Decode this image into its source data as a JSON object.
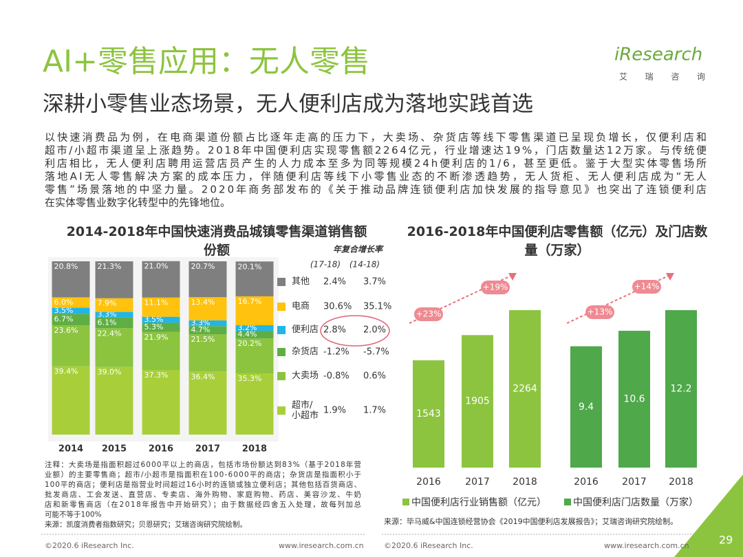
{
  "header": {
    "title": "AI+零售应用：无人零售",
    "subtitle": "深耕小零售业态场景，无人便利店成为落地实践首选",
    "logo": "iResearch",
    "logo_cn": "艾 瑞 咨 询"
  },
  "paragraph": [
    "以快速消费品为例，在电商渠道份额占比逐年走高的压力下，大卖场、杂货店等线下零售渠道已呈现负增长，仅便利店和",
    "超市/小超市渠道呈上涨趋势。2018年中国便利店实现零售额2264亿元，行业增速达19%，门店数量达12万家。与传统便",
    "利店相比，无人便利店聘用运营店员产生的人力成本至多为同等规模24h便利店的1/6，甚至更低。鉴于大型实体零售场所",
    "落地AI无人零售解决方案的成本压力，伴随便利店等线下小零售业态的不断渗透趋势，无人货柜、无人便利店成为“无人",
    "零售”场景落地的中坚力量。2020年商务部发布的《关于推动品牌连锁便利店加快发展的指导意见》也突出了连锁便利店",
    "在实体零售业数字化转型中的先锋地位。"
  ],
  "chart_data": [
    {
      "type": "stacked_bar",
      "title": "2014-2018年中国快速消费品城镇零售渠道销售额份额",
      "categories": [
        "2014",
        "2015",
        "2016",
        "2017",
        "2018"
      ],
      "legend_header": "年复合增长率",
      "cagr_headers": [
        "(17-18)",
        "(14-18)"
      ],
      "series": [
        {
          "name": "超市/小超市",
          "color": "#a8cf3a",
          "values": [
            39.4,
            39.0,
            37.3,
            36.4,
            35.3
          ],
          "value_labels": [
            "39.4%",
            "39.0%",
            "37.3%",
            "36.4%",
            "35.3%"
          ],
          "cagr": [
            1.9,
            1.7
          ],
          "cagr_labels": [
            "1.9%",
            "1.7%"
          ]
        },
        {
          "name": "大卖场",
          "color": "#8cc43f",
          "values": [
            23.6,
            22.4,
            21.9,
            21.5,
            20.2
          ],
          "value_labels": [
            "23.6%",
            "22.4%",
            "21.9%",
            "21.5%",
            "20.2%"
          ],
          "cagr": [
            -0.8,
            0.6
          ],
          "cagr_labels": [
            "-0.8%",
            "0.6%"
          ]
        },
        {
          "name": "杂货店",
          "color": "#5fae44",
          "values": [
            6.7,
            6.1,
            5.3,
            4.7,
            4.4
          ],
          "value_labels": [
            "6.7%",
            "6.1%",
            "5.3%",
            "4.7%",
            "4.4%"
          ],
          "cagr": [
            -1.2,
            -5.7
          ],
          "cagr_labels": [
            "-1.2%",
            "-5.7%"
          ]
        },
        {
          "name": "便利店",
          "color": "#22b5e6",
          "values": [
            3.5,
            3.3,
            3.5,
            3.3,
            3.2
          ],
          "value_labels": [
            "3.5%",
            "3.3%",
            "3.5%",
            "3.3%",
            "3.2%"
          ],
          "cagr": [
            2.8,
            2.0
          ],
          "cagr_labels": [
            "2.8%",
            "2.0%"
          ]
        },
        {
          "name": "电商",
          "color": "#ffc20e",
          "values": [
            6.0,
            7.9,
            11.1,
            13.4,
            16.7
          ],
          "value_labels": [
            "6.0%",
            "7.9%",
            "11.1%",
            "13.4%",
            "16.7%"
          ],
          "cagr": [
            30.6,
            35.1
          ],
          "cagr_labels": [
            "30.6%",
            "35.1%"
          ]
        },
        {
          "name": "其他",
          "color": "#7f7f7f",
          "values": [
            20.8,
            21.3,
            21.0,
            20.7,
            20.1
          ],
          "value_labels": [
            "20.8%",
            "21.3%",
            "21.0%",
            "20.7%",
            "20.1%"
          ],
          "cagr": [
            2.4,
            3.7
          ],
          "cagr_labels": [
            "2.4%",
            "3.7%"
          ]
        }
      ],
      "notes": [
        "注释：大卖场是指面积超过6000平以上的商店，包括市场份额达到83%（基于2018年营",
        "业额）的主要零售商；超市/小超市是指面积在100-6000平的商店；杂货店是指面积小于",
        "100平的商店；便利店是指营业时间超过16小时的连锁或独立便利店；其他包括百货商店、",
        "批发商店、工会发送、直营店、专卖店、海外购物、家庭购物、药店、美容沙龙、牛奶",
        "店和新零售商店（在2018年报告中开始研究）；由于数据经四舍五入处理，故每列加总",
        "可能不等于100%",
        "来源：凯度消费者指数研究；贝恩研究；艾瑞咨询研究院绘制。"
      ]
    },
    {
      "type": "grouped_bar",
      "title": "2016-2018年中国便利店零售额（亿元）及门店数量（万家）",
      "categories": [
        "2016",
        "2017",
        "2018"
      ],
      "series": [
        {
          "name": "中国便利店行业销售额（亿元）",
          "color": "#8cc43f",
          "values": [
            1543,
            1905,
            2264
          ],
          "annotations": [
            "+23%",
            "+19%"
          ]
        },
        {
          "name": "中国便利店门店数量（万家）",
          "color": "#4fa84a",
          "values": [
            9.4,
            10.6,
            12.2
          ],
          "annotations": [
            "+13%",
            "+14%"
          ]
        }
      ],
      "source": "来源：毕马威&中国连锁经营协会《2019中国便利店发展报告》；艾瑞咨询研究院绘制。"
    }
  ],
  "footer": {
    "copyright": "©2020.6 iResearch Inc.",
    "website": "www.iresearch.com.cn",
    "page": "29"
  }
}
